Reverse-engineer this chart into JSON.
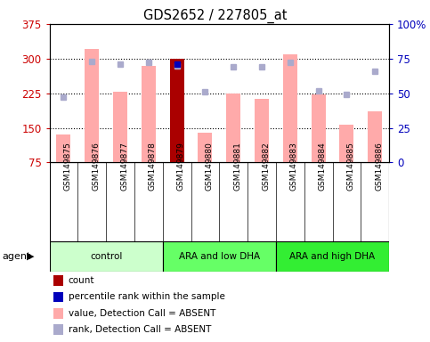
{
  "title": "GDS2652 / 227805_at",
  "samples": [
    "GSM149875",
    "GSM149876",
    "GSM149877",
    "GSM149878",
    "GSM149879",
    "GSM149880",
    "GSM149881",
    "GSM149882",
    "GSM149883",
    "GSM149884",
    "GSM149885",
    "GSM149886"
  ],
  "bar_heights": [
    135,
    320,
    228,
    285,
    300,
    140,
    225,
    212,
    310,
    222,
    157,
    185
  ],
  "bar_colors": [
    "#ffaaaa",
    "#ffaaaa",
    "#ffaaaa",
    "#ffaaaa",
    "#aa0000",
    "#ffaaaa",
    "#ffaaaa",
    "#ffaaaa",
    "#ffaaaa",
    "#ffaaaa",
    "#ffaaaa",
    "#ffaaaa"
  ],
  "rank_markers_pct": [
    47,
    73,
    71,
    72,
    70,
    51,
    69,
    69,
    72,
    52,
    49,
    66
  ],
  "rank_color": "#aaaacc",
  "percentile_markers_pct": [
    null,
    null,
    null,
    null,
    71,
    null,
    null,
    null,
    null,
    null,
    null,
    null
  ],
  "percentile_color": "#0000bb",
  "ylim_left": [
    75,
    375
  ],
  "ylim_right": [
    0,
    100
  ],
  "yticks_left": [
    75,
    150,
    225,
    300,
    375
  ],
  "yticks_right": [
    0,
    25,
    50,
    75,
    100
  ],
  "yticklabels_right": [
    "0",
    "25",
    "50",
    "75",
    "100%"
  ],
  "grid_yticks": [
    150,
    225,
    300
  ],
  "groups": [
    {
      "label": "control",
      "start": 0,
      "end": 3,
      "color": "#ccffcc"
    },
    {
      "label": "ARA and low DHA",
      "start": 4,
      "end": 7,
      "color": "#66ff66"
    },
    {
      "label": "ARA and high DHA",
      "start": 8,
      "end": 11,
      "color": "#33ee33"
    }
  ],
  "agent_label": "agent",
  "legend_items": [
    {
      "color": "#aa0000",
      "label": "count",
      "marker": "square"
    },
    {
      "color": "#0000bb",
      "label": "percentile rank within the sample",
      "marker": "square"
    },
    {
      "color": "#ffaaaa",
      "label": "value, Detection Call = ABSENT",
      "marker": "square"
    },
    {
      "color": "#aaaacc",
      "label": "rank, Detection Call = ABSENT",
      "marker": "square"
    }
  ],
  "left_axis_color": "#cc0000",
  "right_axis_color": "#0000bb",
  "tick_label_area_color": "#cccccc",
  "plot_bg_color": "#ffffff",
  "bar_width": 0.5
}
